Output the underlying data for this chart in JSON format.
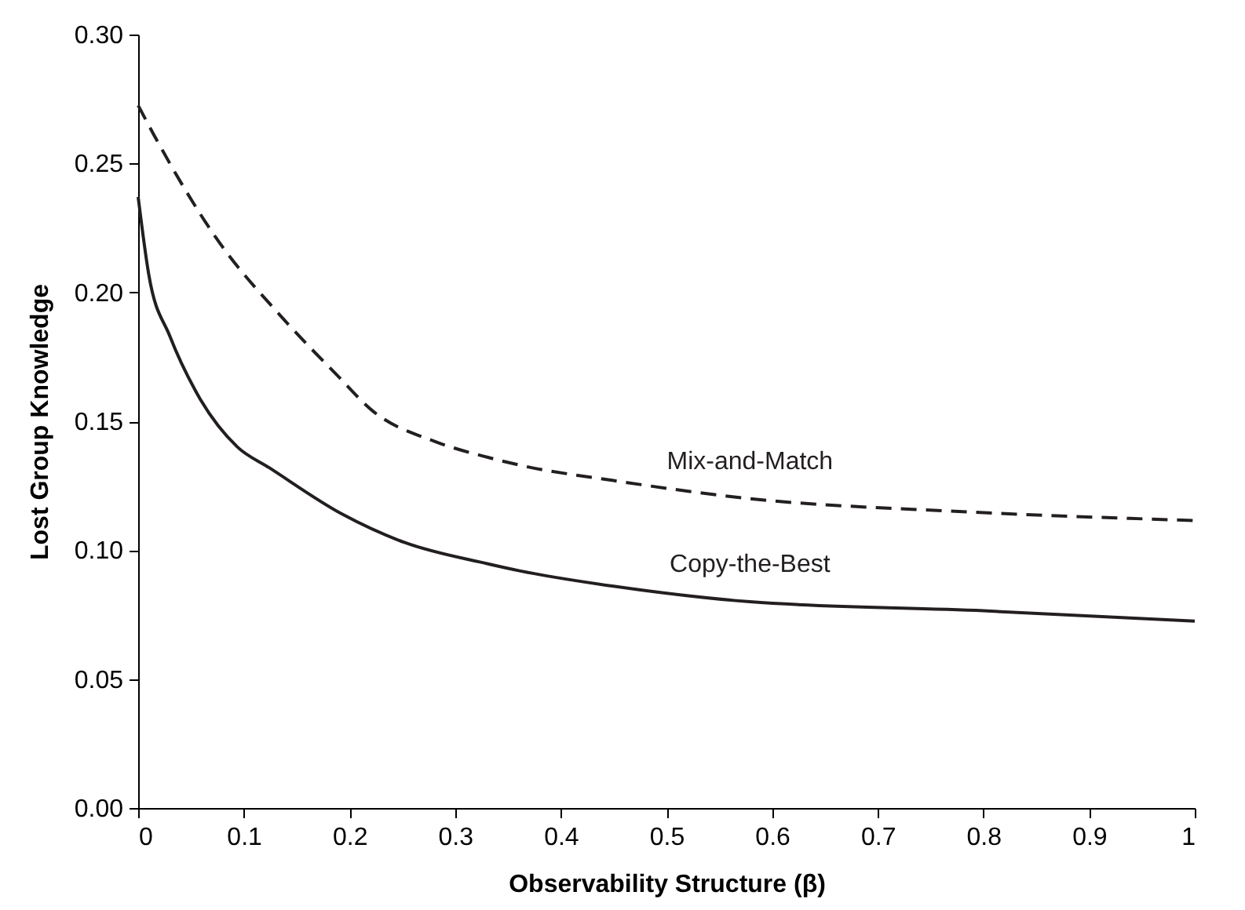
{
  "chart_data": {
    "type": "line",
    "xlabel": "Observability Structure (β)",
    "ylabel": "Lost Group Knowledge",
    "xlim": [
      0,
      1
    ],
    "ylim": [
      0,
      0.3
    ],
    "xticks": [
      0,
      0.1,
      0.2,
      0.3,
      0.4,
      0.5,
      0.6,
      0.7,
      0.8,
      0.9,
      1
    ],
    "yticks": [
      {
        "value": 0,
        "label": "0.00"
      },
      {
        "value": 0.05,
        "label": "0.05"
      },
      {
        "value": 0.1,
        "label": "0.10"
      },
      {
        "value": 0.15,
        "label": "0.15"
      },
      {
        "value": 0.2,
        "label": "0.20"
      },
      {
        "value": 0.25,
        "label": "0.25"
      },
      {
        "value": 0.3,
        "label": "0.30"
      }
    ],
    "marker": "none",
    "series": [
      {
        "name": "Mix-and-Match",
        "color": "#231f20",
        "line_style": "dashed",
        "x": [
          0,
          0.015,
          0.074,
          0.139,
          0.188,
          0.222,
          0.282,
          0.331,
          0.361,
          0.45,
          0.579,
          0.777,
          1
        ],
        "values": [
          0.2725,
          0.261,
          0.221,
          0.189,
          0.168,
          0.154,
          0.142,
          0.136,
          0.133,
          0.127,
          0.12,
          0.115,
          0.1115
        ]
      },
      {
        "name": "Copy-the-Best",
        "color": "#231f20",
        "line_style": "solid",
        "x": [
          0,
          0.01,
          0.03,
          0.054,
          0.094,
          0.124,
          0.193,
          0.252,
          0.331,
          0.361,
          0.45,
          0.579,
          0.8,
          1
        ],
        "values": [
          0.237,
          0.207,
          0.183,
          0.162,
          0.14,
          0.132,
          0.114,
          0.103,
          0.0947,
          0.092,
          0.086,
          0.08,
          0.0765,
          0.0725
        ]
      }
    ]
  }
}
